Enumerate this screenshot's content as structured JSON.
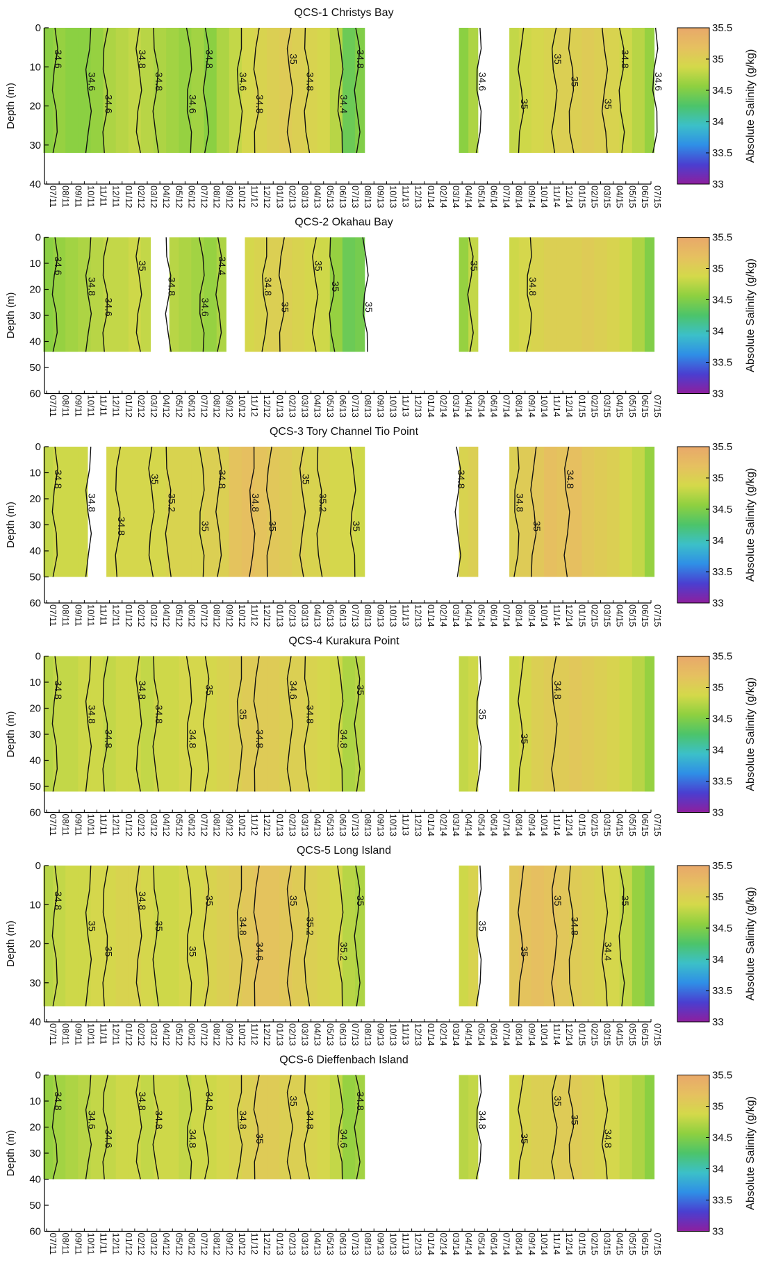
{
  "months": [
    "07/11",
    "08/11",
    "09/11",
    "10/11",
    "11/11",
    "12/11",
    "01/12",
    "02/12",
    "03/12",
    "04/12",
    "05/12",
    "06/12",
    "07/12",
    "08/12",
    "09/12",
    "10/12",
    "11/12",
    "12/12",
    "01/13",
    "02/13",
    "03/13",
    "04/13",
    "05/13",
    "06/13",
    "07/13",
    "08/13",
    "09/13",
    "10/13",
    "11/13",
    "12/13",
    "01/14",
    "02/14",
    "03/14",
    "04/14",
    "05/14",
    "06/14",
    "07/14",
    "08/14",
    "09/14",
    "10/14",
    "11/14",
    "12/14",
    "01/15",
    "02/15",
    "03/15",
    "04/15",
    "05/15",
    "06/15",
    "07/15"
  ],
  "ylabel": "Depth (m)",
  "colorbar": {
    "label": "Absolute Salinity (g/kg)",
    "ticks": [
      "35.5",
      "35",
      "34.5",
      "34",
      "33.5",
      "33"
    ],
    "range": [
      33,
      35.5
    ],
    "stops": [
      "#8e1f9e",
      "#4a3fd0",
      "#2f8fe6",
      "#3cc0c8",
      "#4cc46a",
      "#8ed040",
      "#d4d94a",
      "#e6c060",
      "#e8a86a"
    ]
  },
  "chart_data": [
    {
      "type": "heatmap",
      "title": "QCS-1 Christys Bay",
      "ylim": [
        40,
        0
      ],
      "yticks": [
        "0",
        "10",
        "20",
        "30",
        "40"
      ],
      "ytick_values": [
        0,
        10,
        20,
        30,
        40
      ],
      "max_depth": 32,
      "x": [
        "07/11",
        "08/11",
        "09/11",
        "10/11",
        "11/11",
        "12/11",
        "01/12",
        "02/12",
        "03/12",
        "04/12",
        "05/12",
        "06/12",
        "07/12",
        "08/12",
        "09/12",
        "10/12",
        "11/12",
        "12/12",
        "01/13",
        "02/13",
        "03/13",
        "04/13",
        "05/13",
        "06/13",
        "07/13",
        "08/13",
        "04/14",
        "05/14",
        "08/14",
        "09/14",
        "10/14",
        "11/14",
        "12/14",
        "01/15",
        "02/15",
        "03/15",
        "04/15",
        "05/15",
        "06/15",
        "07/15"
      ],
      "salinity": [
        34.55,
        34.6,
        34.55,
        34.55,
        34.6,
        34.7,
        34.75,
        34.8,
        34.75,
        34.7,
        34.65,
        34.6,
        34.65,
        34.55,
        34.7,
        34.8,
        34.9,
        34.95,
        35.0,
        35.05,
        35.0,
        34.95,
        34.9,
        34.75,
        34.4,
        34.5,
        34.55,
        34.7,
        34.8,
        34.85,
        34.9,
        34.95,
        35.0,
        35.0,
        35.05,
        35.0,
        34.95,
        34.85,
        34.75,
        34.6
      ],
      "contour_labels": [
        "34.6",
        "34.6",
        "34.6",
        "34.8",
        "34.8",
        "34.6",
        "34.8",
        "34.6",
        "34.8",
        "35",
        "34.8",
        "34.4",
        "34.8",
        "34.6",
        "35",
        "35",
        "35",
        "35",
        "34.8",
        "34.6"
      ]
    },
    {
      "type": "heatmap",
      "title": "QCS-2 Okahau Bay",
      "ylim": [
        60,
        0
      ],
      "yticks": [
        "0",
        "10",
        "20",
        "30",
        "40",
        "50",
        "60"
      ],
      "ytick_values": [
        0,
        10,
        20,
        30,
        40,
        50,
        60
      ],
      "max_depth": 44,
      "x": [
        "07/11",
        "08/11",
        "09/11",
        "10/11",
        "11/11",
        "12/11",
        "01/12",
        "02/12",
        "03/12",
        "05/12",
        "06/12",
        "07/12",
        "08/12",
        "09/12",
        "11/12",
        "12/12",
        "01/13",
        "02/13",
        "03/13",
        "04/13",
        "05/13",
        "06/13",
        "07/13",
        "08/13",
        "04/14",
        "05/14",
        "08/14",
        "09/14",
        "10/14",
        "11/14",
        "12/14",
        "01/15",
        "02/15",
        "03/15",
        "04/15",
        "05/15",
        "06/15",
        "07/15"
      ],
      "salinity": [
        34.55,
        34.6,
        34.65,
        34.7,
        34.75,
        34.8,
        34.8,
        34.85,
        34.8,
        34.75,
        34.7,
        34.65,
        34.6,
        34.7,
        34.9,
        34.95,
        35.0,
        35.0,
        34.95,
        34.9,
        34.85,
        34.6,
        34.4,
        34.45,
        34.6,
        34.8,
        34.85,
        34.9,
        34.95,
        35.0,
        35.0,
        35.0,
        35.05,
        35.0,
        34.95,
        34.85,
        34.7,
        34.5
      ],
      "contour_labels": [
        "34.6",
        "34.8",
        "34.6",
        "35",
        "34.8",
        "34.6",
        "34.4",
        "34.8",
        "35",
        "35",
        "35",
        "35",
        "35",
        "34.8"
      ]
    },
    {
      "type": "heatmap",
      "title": "QCS-3 Tory Channel Tio Point",
      "ylim": [
        60,
        0
      ],
      "yticks": [
        "0",
        "10",
        "20",
        "30",
        "40",
        "50",
        "60"
      ],
      "ytick_values": [
        0,
        10,
        20,
        30,
        40,
        50,
        60
      ],
      "max_depth": 50,
      "x": [
        "07/11",
        "08/11",
        "09/11",
        "10/11",
        "12/11",
        "01/12",
        "02/12",
        "03/12",
        "04/12",
        "05/12",
        "06/12",
        "07/12",
        "08/12",
        "09/12",
        "10/12",
        "11/12",
        "12/12",
        "01/13",
        "02/13",
        "03/13",
        "04/13",
        "05/13",
        "06/13",
        "07/13",
        "08/13",
        "04/14",
        "05/14",
        "08/14",
        "09/14",
        "10/14",
        "11/14",
        "12/14",
        "01/15",
        "02/15",
        "03/15",
        "04/15",
        "05/15",
        "06/15",
        "07/15"
      ],
      "salinity": [
        34.8,
        34.85,
        34.85,
        34.85,
        34.9,
        34.9,
        34.9,
        34.9,
        34.9,
        34.95,
        34.95,
        34.95,
        35.0,
        35.0,
        35.15,
        35.2,
        35.15,
        35.1,
        35.05,
        35.0,
        34.95,
        34.95,
        34.9,
        34.9,
        34.85,
        34.95,
        35.0,
        35.0,
        35.05,
        35.1,
        35.2,
        35.15,
        35.2,
        35.1,
        35.05,
        35.0,
        34.9,
        34.8,
        34.6
      ],
      "contour_labels": [
        "34.8",
        "34.8",
        "34.8",
        "35",
        "35.2",
        "35",
        "34.8",
        "34.8",
        "35",
        "35",
        "35.2",
        "35",
        "34.8",
        "34.8",
        "35",
        "34.8"
      ]
    },
    {
      "type": "heatmap",
      "title": "QCS-4 Kurakura Point",
      "ylim": [
        60,
        0
      ],
      "yticks": [
        "0",
        "10",
        "20",
        "30",
        "40",
        "50",
        "60"
      ],
      "ytick_values": [
        0,
        10,
        20,
        30,
        40,
        50,
        60
      ],
      "max_depth": 52,
      "x": [
        "07/11",
        "08/11",
        "09/11",
        "10/11",
        "11/11",
        "12/11",
        "01/12",
        "02/12",
        "03/12",
        "04/12",
        "05/12",
        "06/12",
        "07/12",
        "08/12",
        "09/12",
        "10/12",
        "11/12",
        "12/12",
        "01/13",
        "02/13",
        "03/13",
        "04/13",
        "05/13",
        "06/13",
        "07/13",
        "08/13",
        "04/14",
        "05/14",
        "08/14",
        "09/14",
        "10/14",
        "11/14",
        "12/14",
        "01/15",
        "02/15",
        "03/15",
        "04/15",
        "05/15",
        "06/15",
        "07/15"
      ],
      "salinity": [
        34.75,
        34.8,
        34.8,
        34.85,
        34.85,
        34.8,
        34.85,
        34.85,
        34.8,
        34.85,
        34.85,
        34.9,
        34.9,
        34.9,
        34.95,
        35.0,
        35.05,
        35.05,
        35.05,
        35.0,
        35.0,
        34.95,
        34.9,
        34.85,
        34.7,
        34.75,
        34.8,
        34.85,
        34.85,
        34.9,
        35.0,
        35.05,
        35.05,
        35.1,
        35.05,
        35.0,
        34.95,
        34.85,
        34.75,
        34.6
      ],
      "contour_labels": [
        "34.8",
        "34.8",
        "34.8",
        "34.8",
        "34.8",
        "34.8",
        "35",
        "35",
        "34.8",
        "34.6",
        "34.8",
        "34.8",
        "35",
        "35",
        "35",
        "34.8"
      ]
    },
    {
      "type": "heatmap",
      "title": "QCS-5 Long Island",
      "ylim": [
        40,
        0
      ],
      "yticks": [
        "0",
        "10",
        "20",
        "30",
        "40"
      ],
      "ytick_values": [
        0,
        10,
        20,
        30,
        40
      ],
      "max_depth": 36,
      "x": [
        "07/11",
        "08/11",
        "09/11",
        "10/11",
        "11/11",
        "12/11",
        "01/12",
        "02/12",
        "03/12",
        "04/12",
        "05/12",
        "06/12",
        "07/12",
        "08/12",
        "09/12",
        "10/12",
        "11/12",
        "12/12",
        "01/13",
        "02/13",
        "03/13",
        "04/13",
        "05/13",
        "06/13",
        "07/13",
        "08/13",
        "04/14",
        "05/14",
        "08/14",
        "09/14",
        "10/14",
        "11/14",
        "12/14",
        "01/15",
        "02/15",
        "03/15",
        "04/15",
        "05/15",
        "06/15",
        "07/15"
      ],
      "salinity": [
        34.75,
        34.8,
        34.85,
        34.85,
        34.9,
        34.9,
        34.95,
        34.95,
        34.9,
        34.85,
        34.85,
        34.9,
        34.9,
        34.95,
        35.0,
        35.05,
        35.1,
        35.15,
        35.15,
        35.1,
        35.05,
        35.0,
        34.95,
        34.9,
        34.75,
        34.7,
        34.85,
        34.95,
        35.1,
        35.15,
        35.2,
        35.15,
        35.1,
        35.05,
        35.0,
        34.95,
        34.9,
        34.8,
        34.6,
        34.45
      ],
      "contour_labels": [
        "34.8",
        "35",
        "35",
        "34.8",
        "35",
        "35",
        "35",
        "34.8",
        "34.6",
        "35",
        "35.2",
        "35.2",
        "35",
        "35",
        "35",
        "35",
        "34.8",
        "34.4",
        "35"
      ]
    },
    {
      "type": "heatmap",
      "title": "QCS-6 Dieffenbach Island",
      "ylim": [
        60,
        0
      ],
      "yticks": [
        "0",
        "10",
        "20",
        "30",
        "40",
        "50",
        "60"
      ],
      "ytick_values": [
        0,
        10,
        20,
        30,
        40,
        50,
        60
      ],
      "max_depth": 40,
      "x": [
        "07/11",
        "08/11",
        "09/11",
        "10/11",
        "11/11",
        "12/11",
        "01/12",
        "02/12",
        "03/12",
        "04/12",
        "05/12",
        "06/12",
        "07/12",
        "08/12",
        "09/12",
        "10/12",
        "11/12",
        "12/12",
        "01/13",
        "02/13",
        "03/13",
        "04/13",
        "05/13",
        "06/13",
        "07/13",
        "08/13",
        "04/14",
        "05/14",
        "08/14",
        "09/14",
        "10/14",
        "11/14",
        "12/14",
        "01/15",
        "02/15",
        "03/15",
        "04/15",
        "05/15",
        "06/15",
        "07/15"
      ],
      "salinity": [
        34.6,
        34.65,
        34.7,
        34.75,
        34.8,
        34.8,
        34.85,
        34.85,
        34.8,
        34.85,
        34.85,
        34.8,
        34.85,
        34.85,
        34.9,
        34.95,
        35.0,
        35.05,
        35.05,
        35.0,
        35.0,
        34.95,
        34.9,
        34.8,
        34.6,
        34.65,
        34.75,
        34.8,
        34.9,
        34.95,
        35.0,
        35.0,
        35.05,
        35.05,
        35.0,
        34.95,
        34.9,
        34.8,
        34.7,
        34.55
      ],
      "contour_labels": [
        "34.8",
        "34.6",
        "34.6",
        "34.8",
        "34.8",
        "34.8",
        "34.8",
        "34.8",
        "35",
        "35",
        "34.8",
        "34.6",
        "34.8",
        "34.8",
        "35",
        "35",
        "35",
        "34.8"
      ]
    }
  ]
}
